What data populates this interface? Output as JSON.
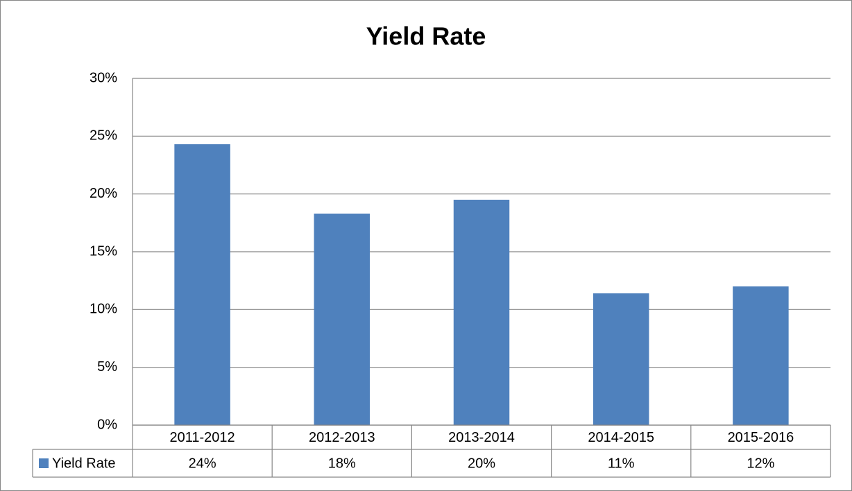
{
  "chart_data": {
    "type": "bar",
    "title": "Yield Rate",
    "categories": [
      "2011-2012",
      "2012-2013",
      "2013-2014",
      "2014-2015",
      "2015-2016"
    ],
    "series": [
      {
        "name": "Yield Rate",
        "color": "#4f81bd",
        "values": [
          24.3,
          18.3,
          19.5,
          11.4,
          12.0
        ],
        "value_labels": [
          "24%",
          "18%",
          "20%",
          "11%",
          "12%"
        ]
      }
    ],
    "ylim": [
      0,
      30
    ],
    "yticks": [
      {
        "value": 0,
        "label": "0%"
      },
      {
        "value": 5,
        "label": "5%"
      },
      {
        "value": 10,
        "label": "10%"
      },
      {
        "value": 15,
        "label": "15%"
      },
      {
        "value": 20,
        "label": "20%"
      },
      {
        "value": 25,
        "label": "25%"
      },
      {
        "value": 30,
        "label": "30%"
      }
    ],
    "grid": true,
    "data_table": true
  }
}
